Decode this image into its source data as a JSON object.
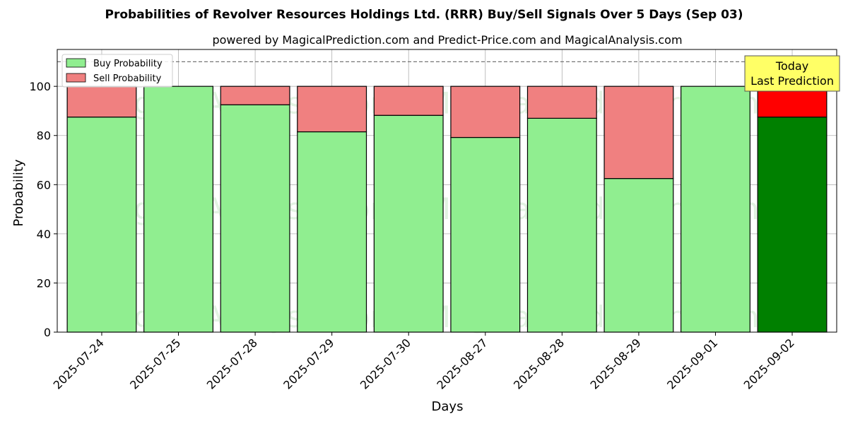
{
  "chart_data": {
    "type": "bar",
    "stacked": true,
    "title": "Probabilities of Revolver Resources Holdings Ltd. (RRR) Buy/Sell Signals Over 5 Days (Sep 03)",
    "subtitle": "powered by MagicalPrediction.com and Predict-Price.com and MagicalAnalysis.com",
    "xlabel": "Days",
    "ylabel": "Probability",
    "ylim": [
      0,
      115
    ],
    "yticks": [
      0,
      20,
      40,
      60,
      80,
      100
    ],
    "grid": true,
    "legend_position": "top-left",
    "reference_line": 110,
    "categories": [
      "2025-07-24",
      "2025-07-25",
      "2025-07-28",
      "2025-07-29",
      "2025-07-30",
      "2025-08-27",
      "2025-08-28",
      "2025-08-29",
      "2025-09-01",
      "2025-09-02"
    ],
    "series": [
      {
        "name": "Buy Probability",
        "values": [
          87.5,
          100,
          92.5,
          81.5,
          88.2,
          79.2,
          87.0,
          62.5,
          100,
          87.5
        ]
      },
      {
        "name": "Sell Probability",
        "values": [
          12.5,
          0,
          7.5,
          18.5,
          11.8,
          20.8,
          13.0,
          37.5,
          0,
          12.5
        ]
      }
    ],
    "colors": {
      "buy": "#90ee90",
      "sell": "#f08080",
      "buy_highlight": "#008000",
      "sell_highlight": "#ff0000",
      "annotation_bg": "#ffff66"
    },
    "highlight_index": 9,
    "annotation": {
      "line1": "Today",
      "line2": "Last Prediction",
      "category_index": 9
    },
    "watermarks": [
      "MagicalAnalysis.com",
      "MagicalPrediction.com"
    ]
  }
}
